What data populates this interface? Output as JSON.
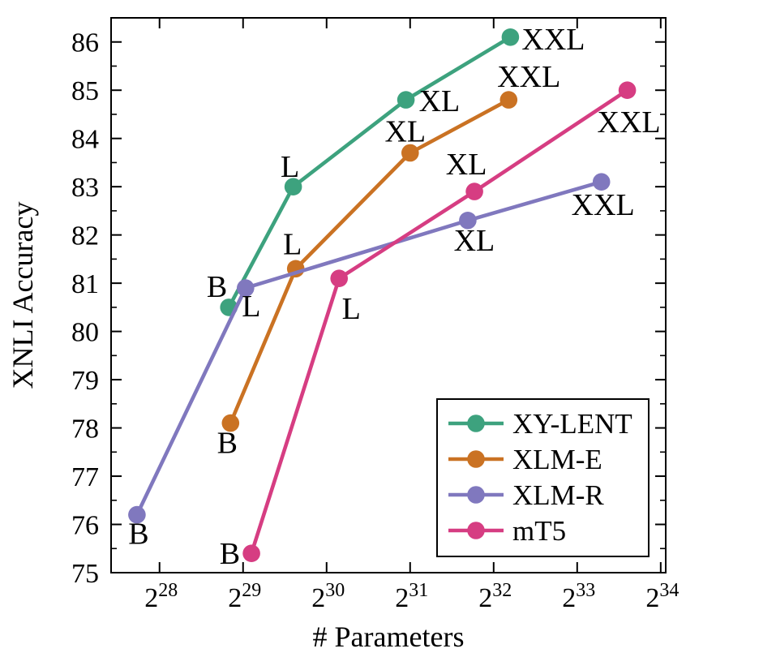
{
  "figure": {
    "background": "#ffffff",
    "frame_color": "#000000",
    "text_color": "#000000"
  },
  "chart_data": {
    "type": "line",
    "title": "",
    "xlabel": "# Parameters",
    "ylabel": "XNLI Accuracy",
    "x_scale": "log2",
    "x_tick_base": "2",
    "x_tick_exponents": [
      28,
      29,
      30,
      31,
      32,
      33,
      34
    ],
    "xlim_log2": [
      27.42,
      34.06
    ],
    "y_ticks": [
      75,
      76,
      77,
      78,
      79,
      80,
      81,
      82,
      83,
      84,
      85,
      86
    ],
    "y_minor_tick_step": 0.5,
    "ylim": [
      75,
      86.5
    ],
    "grid": false,
    "legend": {
      "position": "lower-right",
      "entries": [
        "XY-LENT",
        "XLM-E",
        "XLM-R",
        "mT5"
      ]
    },
    "series": [
      {
        "name": "XY-LENT",
        "color": "#3da27e",
        "points": [
          {
            "label": "B",
            "x_log2": 28.83,
            "y": 80.5,
            "label_anchor": "end",
            "label_dx": -2,
            "label_dy": -13
          },
          {
            "label": "L",
            "x_log2": 29.6,
            "y": 83.0,
            "label_anchor": "middle",
            "label_dx": -4,
            "label_dy": -12
          },
          {
            "label": "XL",
            "x_log2": 30.95,
            "y": 84.8,
            "label_anchor": "start",
            "label_dx": 16,
            "label_dy": 14
          },
          {
            "label": "XXL",
            "x_log2": 32.2,
            "y": 86.1,
            "label_anchor": "start",
            "label_dx": 14,
            "label_dy": 15
          }
        ]
      },
      {
        "name": "XLM-E",
        "color": "#ca7223",
        "points": [
          {
            "label": "B",
            "x_log2": 28.85,
            "y": 78.1,
            "label_anchor": "middle",
            "label_dx": -4,
            "label_dy": 37
          },
          {
            "label": "L",
            "x_log2": 29.63,
            "y": 81.3,
            "label_anchor": "middle",
            "label_dx": -4,
            "label_dy": -18
          },
          {
            "label": "XL",
            "x_log2": 31.0,
            "y": 83.7,
            "label_anchor": "middle",
            "label_dx": -6,
            "label_dy": -14
          },
          {
            "label": "XXL",
            "x_log2": 32.18,
            "y": 84.8,
            "label_anchor": "middle",
            "label_dx": 25,
            "label_dy": -16
          }
        ]
      },
      {
        "name": "XLM-R",
        "color": "#8078be",
        "points": [
          {
            "label": "B",
            "x_log2": 27.73,
            "y": 76.2,
            "label_anchor": "middle",
            "label_dx": 2,
            "label_dy": 36
          },
          {
            "label": "L",
            "x_log2": 29.03,
            "y": 80.9,
            "label_anchor": "middle",
            "label_dx": 7,
            "label_dy": 35
          },
          {
            "label": "XL",
            "x_log2": 31.69,
            "y": 82.3,
            "label_anchor": "middle",
            "label_dx": 8,
            "label_dy": 37
          },
          {
            "label": "XXL",
            "x_log2": 33.29,
            "y": 83.1,
            "label_anchor": "middle",
            "label_dx": 2,
            "label_dy": 41
          }
        ]
      },
      {
        "name": "mT5",
        "color": "#d63d82",
        "points": [
          {
            "label": "B",
            "x_log2": 29.1,
            "y": 75.4,
            "label_anchor": "end",
            "label_dx": -14,
            "label_dy": 13
          },
          {
            "label": "L",
            "x_log2": 30.15,
            "y": 81.1,
            "label_anchor": "middle",
            "label_dx": 15,
            "label_dy": 50
          },
          {
            "label": "XL",
            "x_log2": 31.77,
            "y": 82.9,
            "label_anchor": "middle",
            "label_dx": -10,
            "label_dy": -21
          },
          {
            "label": "XXL",
            "x_log2": 33.6,
            "y": 85.0,
            "label_anchor": "middle",
            "label_dx": 2,
            "label_dy": 52
          }
        ]
      }
    ]
  }
}
